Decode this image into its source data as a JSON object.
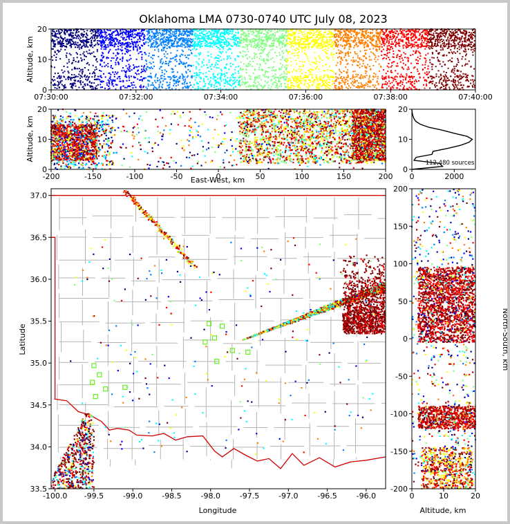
{
  "title": "Oklahoma LMA 0730-0740 UTC July 08, 2023",
  "colormap": [
    "#00007f",
    "#0000ff",
    "#007fff",
    "#00ffff",
    "#7fff7f",
    "#ffff00",
    "#ff7f00",
    "#ff0000",
    "#7f0000"
  ],
  "outline_color": "#d00000",
  "county_color": "#b4b4b4",
  "chart_data": [
    {
      "name": "altitude-time",
      "type": "scatter",
      "ylabel": "Altitude, km",
      "ylim": [
        0,
        20
      ],
      "yticks": [
        "0",
        "10",
        "20"
      ],
      "xtick_labels": [
        "07:30:00",
        "07:32:00",
        "07:34:00",
        "07:36:00",
        "07:38:00",
        "07:40:00"
      ],
      "color_by": "time"
    },
    {
      "name": "east-west-altitude",
      "type": "scatter",
      "xlabel": "East-West, km",
      "ylabel": "Altitude, km",
      "xlim": [
        -200,
        200
      ],
      "ylim": [
        0,
        20
      ],
      "xticks": [
        "-200",
        "-150",
        "-100",
        "-50",
        "0",
        "50",
        "100",
        "150",
        "200"
      ],
      "yticks": [
        "0",
        "10",
        "20"
      ]
    },
    {
      "name": "altitude-histogram",
      "type": "line",
      "xlim": [
        0,
        3000
      ],
      "ylim": [
        0,
        20
      ],
      "xticks": [
        "0",
        "2000"
      ],
      "yticks": [
        "0",
        "10",
        "20"
      ],
      "profile": [
        [
          0,
          0
        ],
        [
          1450,
          1
        ],
        [
          1300,
          2
        ],
        [
          100,
          3
        ],
        [
          200,
          4
        ],
        [
          950,
          5
        ],
        [
          1000,
          6
        ],
        [
          1700,
          7
        ],
        [
          2300,
          8
        ],
        [
          2700,
          9
        ],
        [
          2850,
          10
        ],
        [
          2600,
          11
        ],
        [
          2000,
          12
        ],
        [
          1450,
          13
        ],
        [
          800,
          14
        ],
        [
          400,
          15
        ],
        [
          180,
          16
        ],
        [
          90,
          17
        ],
        [
          40,
          18
        ],
        [
          12,
          19
        ],
        [
          0,
          20
        ]
      ],
      "annotation": "112,480 sources"
    },
    {
      "name": "plan-view",
      "type": "scatter",
      "xlabel": "Longitude",
      "ylabel": "Latitude",
      "xlim": [
        -100.05,
        -95.75
      ],
      "ylim": [
        33.5,
        37.08
      ],
      "xticks": [
        "-100.0",
        "-99.5",
        "-99.0",
        "-98.5",
        "-98.0",
        "-97.5",
        "-97.0",
        "-96.5",
        "-96.0"
      ],
      "yticks": [
        "33.5",
        "34.0",
        "34.5",
        "35.0",
        "35.5",
        "36.0",
        "36.5",
        "37.0"
      ],
      "stations": [
        [
          -99.5,
          34.97
        ],
        [
          -99.43,
          34.86
        ],
        [
          -99.52,
          34.77
        ],
        [
          -99.35,
          34.69
        ],
        [
          -99.1,
          34.71
        ],
        [
          -99.48,
          34.6
        ],
        [
          -98.02,
          35.47
        ],
        [
          -98.07,
          35.25
        ],
        [
          -97.95,
          35.3
        ],
        [
          -97.92,
          35.02
        ],
        [
          -97.72,
          35.15
        ],
        [
          -97.85,
          35.44
        ],
        [
          -97.52,
          35.13
        ]
      ]
    },
    {
      "name": "north-south-altitude",
      "type": "scatter",
      "xlabel": "Altitude, km",
      "ylabel": "North-South, km",
      "xlim": [
        0,
        20
      ],
      "ylim": [
        -200,
        200
      ],
      "xticks": [
        "0",
        "10",
        "20"
      ],
      "yticks": [
        "-200",
        "-150",
        "-100",
        "-50",
        "0",
        "50",
        "100",
        "150",
        "200"
      ]
    }
  ]
}
